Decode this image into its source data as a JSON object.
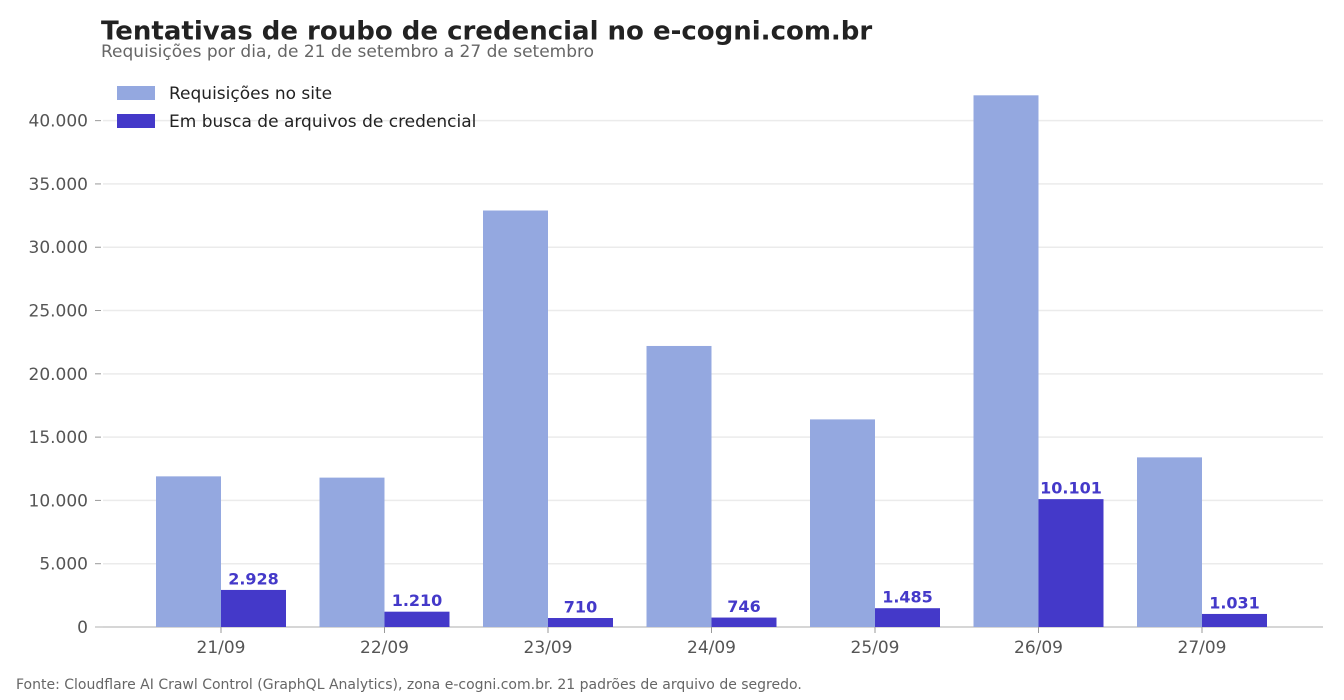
{
  "chart_data": {
    "type": "bar",
    "title": "Tentativas de roubo de credencial no e-cogni.com.br",
    "subtitle": "Requisições por dia, de 21 de setembro a 27 de setembro",
    "footnote": "Fonte: Cloudflare AI Crawl Control (GraphQL Analytics), zona e-cogni.com.br. 21 padrões de arquivo de segredo.",
    "categories": [
      "21/09",
      "22/09",
      "23/09",
      "24/09",
      "25/09",
      "26/09",
      "27/09"
    ],
    "series": [
      {
        "name": "Requisições no site",
        "color": "#94a8e0",
        "values": [
          11900,
          11800,
          32900,
          22200,
          16400,
          42000,
          13400
        ]
      },
      {
        "name": "Em busca de arquivos de credencial",
        "color": "#4439c9",
        "values": [
          2928,
          1210,
          710,
          746,
          1485,
          10101,
          1031
        ],
        "value_labels": [
          "2.928",
          "1.210",
          "710",
          "746",
          "1.485",
          "10.101",
          "1.031"
        ]
      }
    ],
    "ylim": [
      0,
      44000
    ],
    "yticks": [
      0,
      {
        "value": 5000,
        "label": "5.000"
      },
      {
        "value": 10000,
        "label": "10.000"
      },
      {
        "value": 15000,
        "label": "15.000"
      },
      {
        "value": 20000,
        "label": "20.000"
      },
      {
        "value": 25000,
        "label": "25.000"
      },
      {
        "value": 30000,
        "label": "30.000"
      },
      {
        "value": 35000,
        "label": "35.000"
      },
      {
        "value": 40000,
        "label": "40.000"
      }
    ],
    "grid": true,
    "legend": "upper left"
  }
}
